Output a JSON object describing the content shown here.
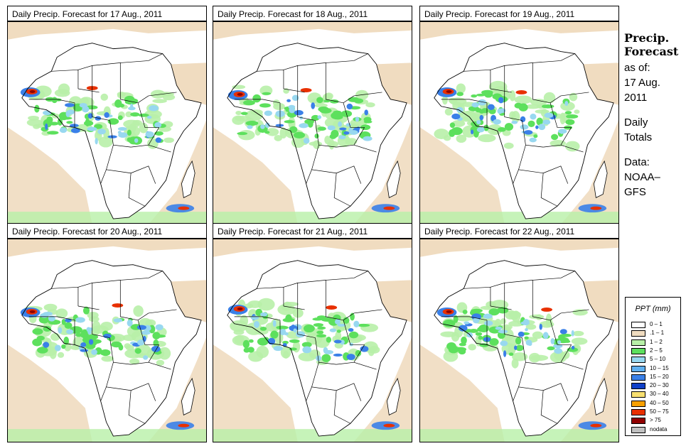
{
  "panels": [
    {
      "title": "Daily Precip. Forecast for  17 Aug., 2011"
    },
    {
      "title": "Daily Precip. Forecast for  18 Aug., 2011"
    },
    {
      "title": "Daily Precip. Forecast for  19 Aug., 2011"
    },
    {
      "title": "Daily Precip. Forecast for  20 Aug., 2011"
    },
    {
      "title": "Daily Precip. Forecast for  21 Aug., 2011"
    },
    {
      "title": "Daily Precip. Forecast for  22 Aug., 2011"
    }
  ],
  "sidebar": {
    "heading_line1": "Precip.",
    "heading_line2": "Forecast",
    "asof_label": "as of:",
    "asof_date_line1": "17 Aug.",
    "asof_date_line2": "2011",
    "totals_line1": "Daily",
    "totals_line2": "Totals",
    "data_label": "Data:",
    "data_source_line1": "NOAA–",
    "data_source_line2": "GFS"
  },
  "legend": {
    "title": "PPT (mm)",
    "items": [
      {
        "label": "0 – 1",
        "color": "#ffffff"
      },
      {
        "label": ".1 – 1",
        "color": "#f0dcc0"
      },
      {
        "label": "1 – 2",
        "color": "#b8f0a8"
      },
      {
        "label": "2 – 5",
        "color": "#5de05d"
      },
      {
        "label": "5 – 10",
        "color": "#98d8f0"
      },
      {
        "label": "10 – 15",
        "color": "#60b0f0"
      },
      {
        "label": "15 – 20",
        "color": "#3a80e8"
      },
      {
        "label": "20 – 30",
        "color": "#1040c8"
      },
      {
        "label": "30 – 40",
        "color": "#f8e070"
      },
      {
        "label": "40 – 50",
        "color": "#f8a000"
      },
      {
        "label": "50 – 75",
        "color": "#e83000"
      },
      {
        "label": "> 75",
        "color": "#900000"
      },
      {
        "label": "nodata",
        "color": "#c0c0c0"
      }
    ]
  },
  "colors": {
    "dry": "#f0dcc0",
    "light_green": "#b8f0a8",
    "green": "#5de05d",
    "light_blue": "#98d8f0",
    "blue": "#3a80e8",
    "dark_blue": "#1040c8",
    "red": "#e83000",
    "dark_red": "#900000"
  }
}
